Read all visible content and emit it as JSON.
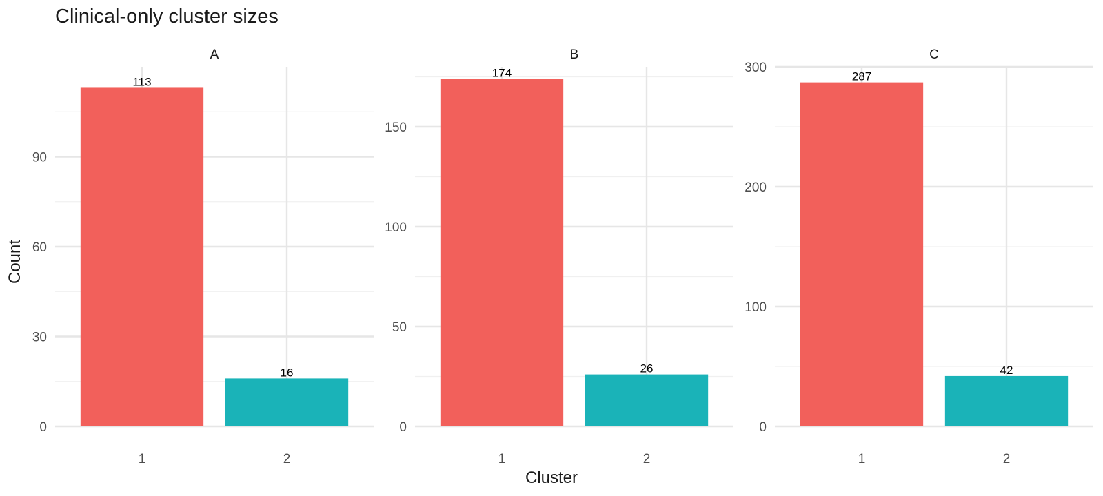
{
  "title": "Clinical-only cluster sizes",
  "colors": {
    "1": "#F2605B",
    "2": "#1AB3B8",
    "grid_major": "#e6e6e6",
    "grid_minor": "#f0f0f0"
  },
  "chart_data": {
    "type": "bar",
    "xlabel": "Cluster",
    "ylabel": "Count",
    "grid": true,
    "legend": "none",
    "categories": [
      "1",
      "2"
    ],
    "panels": [
      {
        "name": "A",
        "values": [
          113,
          16
        ],
        "ylim": [
          0,
          120
        ],
        "yticks": [
          0,
          30,
          60,
          90
        ]
      },
      {
        "name": "B",
        "values": [
          174,
          26
        ],
        "ylim": [
          0,
          180
        ],
        "yticks": [
          0,
          50,
          100,
          150
        ]
      },
      {
        "name": "C",
        "values": [
          287,
          42
        ],
        "ylim": [
          0,
          300
        ],
        "yticks": [
          0,
          100,
          200,
          300
        ]
      }
    ]
  }
}
